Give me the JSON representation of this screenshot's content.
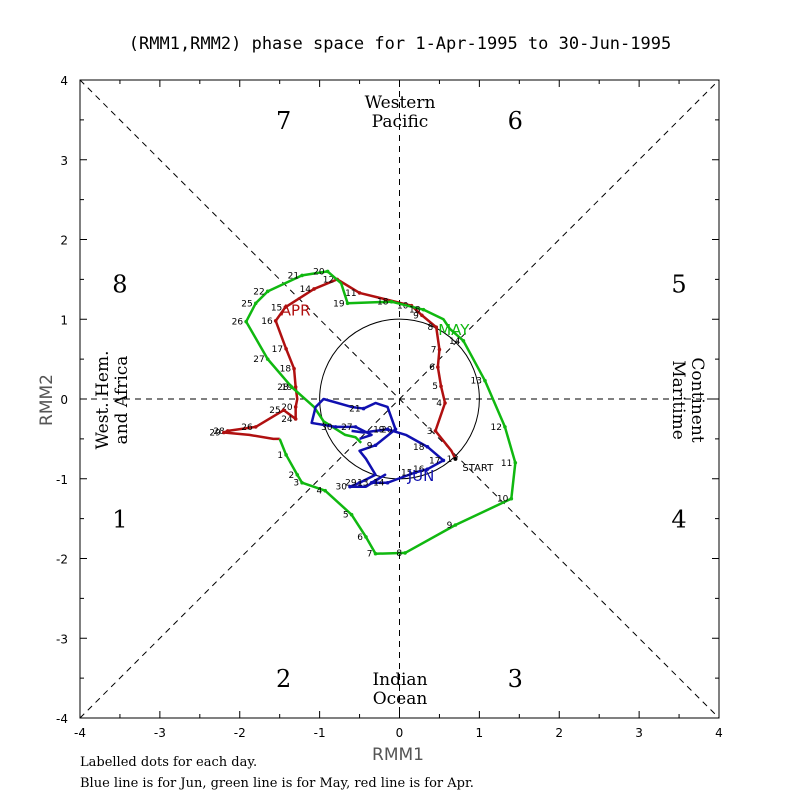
{
  "chart_data": {
    "type": "line",
    "title": "(RMM1,RMM2) phase space for  1-Apr-1995 to 30-Jun-1995",
    "xlabel": "RMM1",
    "ylabel": "RMM2",
    "xlim": [
      -4,
      4
    ],
    "ylim": [
      -4,
      4
    ],
    "x_ticks": [
      "-4",
      "-3",
      "-2",
      "-1",
      "0",
      "1",
      "2",
      "3",
      "4"
    ],
    "y_ticks": [
      "-4",
      "-3",
      "-2",
      "-1",
      "0",
      "1",
      "2",
      "3",
      "4"
    ],
    "grid": false,
    "phase_labels": [
      "1",
      "2",
      "3",
      "4",
      "5",
      "6",
      "7",
      "8"
    ],
    "region_labels": {
      "top": [
        "Western",
        "Pacific"
      ],
      "bottom": [
        "Indian",
        "Ocean"
      ],
      "left": [
        "West. Hem.",
        "and Africa"
      ],
      "right": [
        "Maritime",
        "Continent"
      ]
    },
    "start_label": "START",
    "series": [
      {
        "name": "Apr",
        "color": "#b01010",
        "month_label": "APR",
        "month_label_at": [
          -1.3,
          1.05
        ],
        "points": [
          [
            0.7,
            -0.75,
            "1"
          ],
          [
            0.65,
            -0.65,
            ""
          ],
          [
            0.45,
            -0.4,
            "3"
          ],
          [
            0.57,
            -0.05,
            "4"
          ],
          [
            0.52,
            0.16,
            "5"
          ],
          [
            0.48,
            0.4,
            "6"
          ],
          [
            0.5,
            0.62,
            "7"
          ],
          [
            0.46,
            0.9,
            "8"
          ],
          [
            0.28,
            1.05,
            "9"
          ],
          [
            0.15,
            1.17,
            "10"
          ],
          [
            -0.5,
            1.33,
            "11"
          ],
          [
            -0.78,
            1.5,
            "12"
          ],
          [
            -1.07,
            1.38,
            "14"
          ],
          [
            -1.43,
            1.15,
            "15"
          ],
          [
            -1.55,
            0.98,
            "16"
          ],
          [
            -1.42,
            0.63,
            "17"
          ],
          [
            -1.32,
            0.38,
            "18"
          ],
          [
            -1.3,
            0.15,
            "19"
          ],
          [
            -1.28,
            0.0,
            ""
          ],
          [
            -1.3,
            -0.1,
            "20"
          ],
          [
            -1.3,
            -0.25,
            "24"
          ],
          [
            -1.45,
            -0.14,
            "25"
          ],
          [
            -1.8,
            -0.35,
            "26"
          ],
          [
            -2.15,
            -0.4,
            "28"
          ],
          [
            -2.2,
            -0.42,
            "29"
          ],
          [
            -1.88,
            -0.45,
            ""
          ],
          [
            -1.58,
            -0.5,
            ""
          ],
          [
            -1.5,
            -0.5,
            ""
          ]
        ]
      },
      {
        "name": "May",
        "color": "#10b810",
        "month_label": "MAY",
        "month_label_at": [
          0.68,
          0.8
        ],
        "points": [
          [
            -1.5,
            -0.5,
            ""
          ],
          [
            -1.42,
            -0.7,
            "1"
          ],
          [
            -1.28,
            -0.95,
            "2"
          ],
          [
            -1.22,
            -1.05,
            "3"
          ],
          [
            -0.93,
            -1.15,
            "4"
          ],
          [
            -0.6,
            -1.45,
            "5"
          ],
          [
            -0.42,
            -1.73,
            "6"
          ],
          [
            -0.3,
            -1.94,
            "7"
          ],
          [
            0.07,
            -1.93,
            "8"
          ],
          [
            0.7,
            -1.58,
            "9"
          ],
          [
            1.4,
            -1.25,
            "10"
          ],
          [
            1.45,
            -0.8,
            "11"
          ],
          [
            1.32,
            -0.35,
            "12"
          ],
          [
            1.07,
            0.23,
            "13"
          ],
          [
            0.8,
            0.73,
            "14"
          ],
          [
            0.63,
            0.88,
            ""
          ],
          [
            0.55,
            1.0,
            ""
          ],
          [
            0.3,
            1.12,
            "18"
          ],
          [
            -0.1,
            1.22,
            "18"
          ],
          [
            -0.65,
            1.2,
            "19"
          ],
          [
            -0.73,
            1.45,
            ""
          ],
          [
            -0.9,
            1.6,
            "20"
          ],
          [
            -1.22,
            1.55,
            "21"
          ],
          [
            -1.65,
            1.35,
            "22"
          ],
          [
            -1.8,
            1.2,
            "25"
          ],
          [
            -1.92,
            0.97,
            "26"
          ],
          [
            -1.65,
            0.5,
            "27"
          ],
          [
            -1.35,
            0.15,
            "28"
          ],
          [
            -1.07,
            -0.1,
            ""
          ],
          [
            -0.95,
            -0.28,
            ""
          ],
          [
            -0.68,
            -0.45,
            ""
          ],
          [
            -0.55,
            -0.48,
            ""
          ],
          [
            -0.48,
            -0.55,
            ""
          ]
        ]
      },
      {
        "name": "Jun",
        "color": "#1010b0",
        "month_label": "JUN",
        "month_label_at": [
          0.27,
          -1.03
        ],
        "points": [
          [
            -0.5,
            -0.5,
            ""
          ],
          [
            -0.35,
            -0.45,
            ""
          ],
          [
            -0.55,
            -0.35,
            "27"
          ],
          [
            -0.8,
            -0.35,
            "30"
          ],
          [
            -1.1,
            -0.3,
            ""
          ],
          [
            -1.05,
            -0.1,
            ""
          ],
          [
            -0.95,
            0.0,
            ""
          ],
          [
            -0.6,
            -0.1,
            ""
          ],
          [
            -0.45,
            -0.12,
            "21"
          ],
          [
            -0.3,
            -0.05,
            ""
          ],
          [
            -0.15,
            -0.1,
            ""
          ],
          [
            -0.05,
            -0.38,
            "20"
          ],
          [
            -0.3,
            -0.58,
            "9"
          ],
          [
            -0.5,
            -0.65,
            ""
          ],
          [
            -0.42,
            -0.75,
            ""
          ],
          [
            -0.3,
            -0.95,
            ""
          ],
          [
            -0.5,
            -1.05,
            "29"
          ],
          [
            -0.62,
            -1.1,
            "30"
          ],
          [
            -0.42,
            -1.1,
            ""
          ],
          [
            -0.18,
            -0.95,
            ""
          ],
          [
            -0.35,
            -1.05,
            "13"
          ],
          [
            -0.15,
            -1.05,
            "14"
          ],
          [
            0.2,
            -0.92,
            "15"
          ],
          [
            0.35,
            -0.88,
            "16"
          ],
          [
            0.55,
            -0.77,
            "17"
          ],
          [
            0.35,
            -0.6,
            "18"
          ],
          [
            0.08,
            -0.45,
            ""
          ],
          [
            -0.15,
            -0.38,
            "19"
          ],
          [
            -0.45,
            -0.42,
            ""
          ],
          [
            -0.6,
            -0.4,
            ""
          ]
        ]
      }
    ]
  },
  "footnotes": {
    "line1": "Labelled dots for each day.",
    "line2": "Blue line is for Jun, green line is for May, red line is for Apr."
  }
}
